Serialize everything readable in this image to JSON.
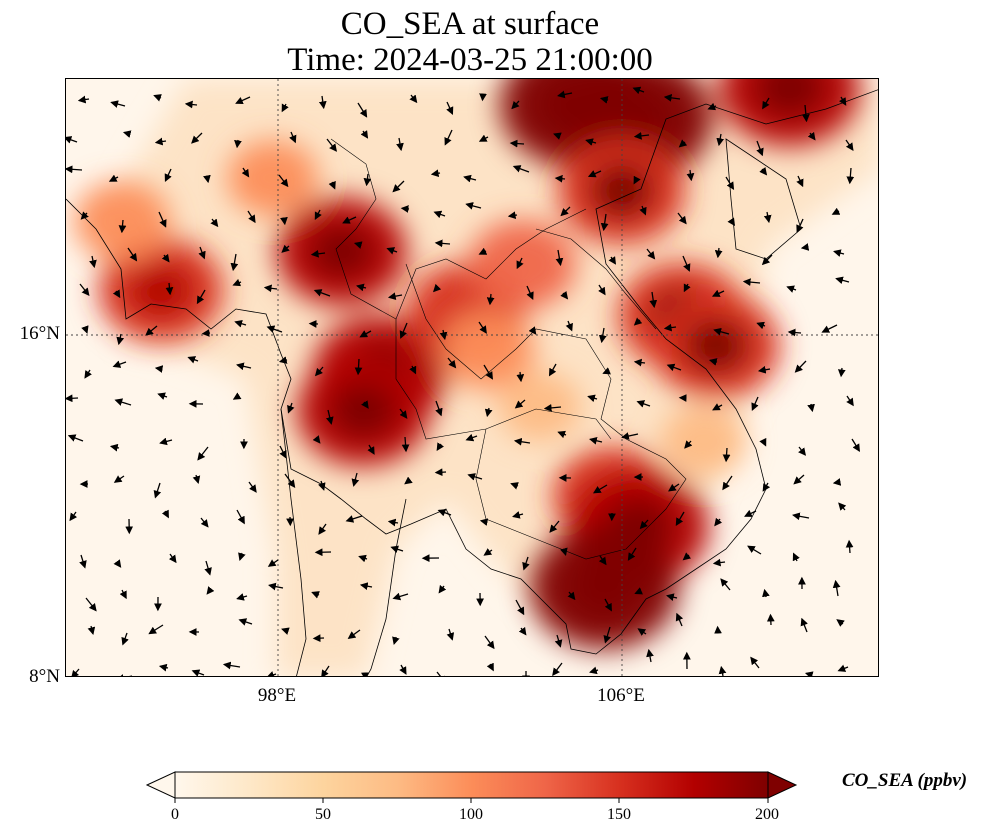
{
  "title": {
    "line1": "CO_SEA at surface",
    "line2": "Time: 2024-03-25 21:00:00"
  },
  "map": {
    "lat_labels": [
      "16°N",
      "8°N"
    ],
    "lon_labels": [
      "98°E",
      "106°E"
    ],
    "lon_range": [
      93.0,
      111.9
    ],
    "lat_range": [
      8.0,
      21.9
    ],
    "gridlines": "dotted",
    "colormap": "OrRd",
    "concentration_hotspots": [
      {
        "lon": 104.8,
        "lat": 21.3,
        "value": 200
      },
      {
        "lon": 106.3,
        "lat": 21.0,
        "value": 200
      },
      {
        "lon": 109.8,
        "lat": 21.7,
        "value": 185
      },
      {
        "lon": 105.9,
        "lat": 19.3,
        "value": 160
      },
      {
        "lon": 99.4,
        "lat": 17.9,
        "value": 165
      },
      {
        "lon": 95.2,
        "lat": 17.0,
        "value": 155
      },
      {
        "lon": 100.3,
        "lat": 15.1,
        "value": 175
      },
      {
        "lon": 99.9,
        "lat": 14.2,
        "value": 170
      },
      {
        "lon": 102.3,
        "lat": 16.5,
        "value": 140
      },
      {
        "lon": 103.6,
        "lat": 17.6,
        "value": 120
      },
      {
        "lon": 107.3,
        "lat": 16.4,
        "value": 160
      },
      {
        "lon": 108.1,
        "lat": 15.7,
        "value": 160
      },
      {
        "lon": 105.7,
        "lat": 12.2,
        "value": 145
      },
      {
        "lon": 106.3,
        "lat": 11.5,
        "value": 185
      },
      {
        "lon": 105.5,
        "lat": 10.1,
        "value": 200
      },
      {
        "lon": 102.8,
        "lat": 15.6,
        "value": 95
      },
      {
        "lon": 104.0,
        "lat": 14.3,
        "value": 75
      },
      {
        "lon": 107.8,
        "lat": 13.5,
        "value": 80
      },
      {
        "lon": 94.3,
        "lat": 18.6,
        "value": 100
      },
      {
        "lon": 97.8,
        "lat": 19.6,
        "value": 90
      }
    ]
  },
  "colorbar": {
    "label": "CO_SEA (ppbv)",
    "ticks": [
      "0",
      "50",
      "100",
      "150",
      "200"
    ],
    "min": 0,
    "max": 200,
    "extend": "both",
    "colors": [
      "#fff7ec",
      "#fee8c8",
      "#fdd49e",
      "#fdbb84",
      "#fc8d59",
      "#ef6548",
      "#d7301f",
      "#b30000",
      "#7f0000"
    ]
  }
}
